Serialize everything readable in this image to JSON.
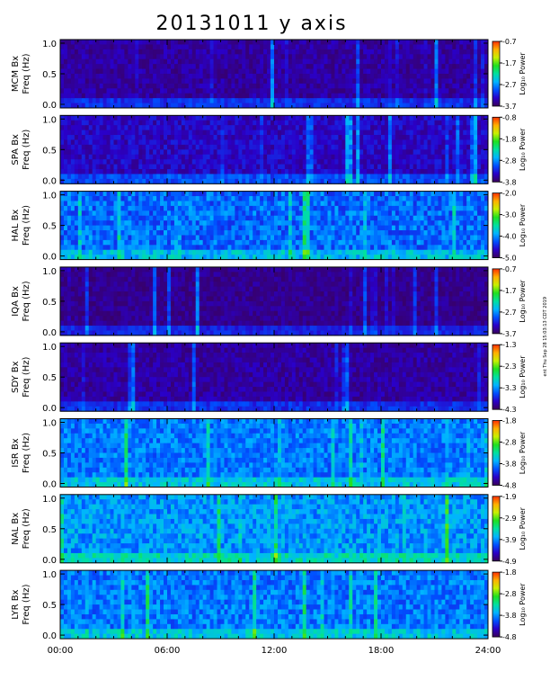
{
  "title": "20131011 y axis",
  "side_note": "ent Thu Sep 28 15:03:13 CDT 2019",
  "chart_data": {
    "type": "heatmap",
    "x_axis": {
      "range_hours": [
        0,
        24
      ],
      "ticks": [
        {
          "value": 0,
          "label": "00:00"
        },
        {
          "value": 6,
          "label": "06:00"
        },
        {
          "value": 12,
          "label": "12:00"
        },
        {
          "value": 18,
          "label": "18:00"
        },
        {
          "value": 24,
          "label": "24:00"
        }
      ]
    },
    "y_axis": {
      "range": [
        0,
        1.0
      ],
      "ticks": [
        {
          "value": 0.0,
          "label": "0.0"
        },
        {
          "value": 0.5,
          "label": "0.5"
        },
        {
          "value": 1.0,
          "label": "1.0"
        }
      ],
      "unit_label": "Freq (Hz)"
    },
    "colorbar_label": "Log₁₀ Power",
    "colormap": [
      "#3a005a",
      "#2a00c8",
      "#0050ff",
      "#00b4ff",
      "#00e0a0",
      "#20e020",
      "#c8f000",
      "#ffb000",
      "#ff3000"
    ],
    "panels": [
      {
        "station": "MCM Bx",
        "cbar_ticks": [
          "-0.7",
          "-1.7",
          "-2.7",
          "-3.7"
        ],
        "base": 0.08,
        "noise": 0.1
      },
      {
        "station": "SPA Bx",
        "cbar_ticks": [
          "-0.8",
          "-1.8",
          "-2.8",
          "-3.8"
        ],
        "base": 0.12,
        "noise": 0.12
      },
      {
        "station": "HAL Bx",
        "cbar_ticks": [
          "-2.0",
          "-3.0",
          "-4.0",
          "-5.0"
        ],
        "base": 0.28,
        "noise": 0.18
      },
      {
        "station": "IQA Bx",
        "cbar_ticks": [
          "-0.7",
          "-1.7",
          "-2.7",
          "-3.7"
        ],
        "base": 0.06,
        "noise": 0.08
      },
      {
        "station": "SDY Bx",
        "cbar_ticks": [
          "-1.3",
          "-2.3",
          "-3.3",
          "-4.3"
        ],
        "base": 0.08,
        "noise": 0.1
      },
      {
        "station": "ISR Bx",
        "cbar_ticks": [
          "-1.8",
          "-2.8",
          "-3.8",
          "-4.8"
        ],
        "base": 0.3,
        "noise": 0.16
      },
      {
        "station": "NAL Bx",
        "cbar_ticks": [
          "-1.9",
          "-2.9",
          "-3.9",
          "-4.9"
        ],
        "base": 0.34,
        "noise": 0.18
      },
      {
        "station": "LYR Bx",
        "cbar_ticks": [
          "-1.8",
          "-2.8",
          "-3.8",
          "-4.8"
        ],
        "base": 0.3,
        "noise": 0.17
      }
    ]
  }
}
